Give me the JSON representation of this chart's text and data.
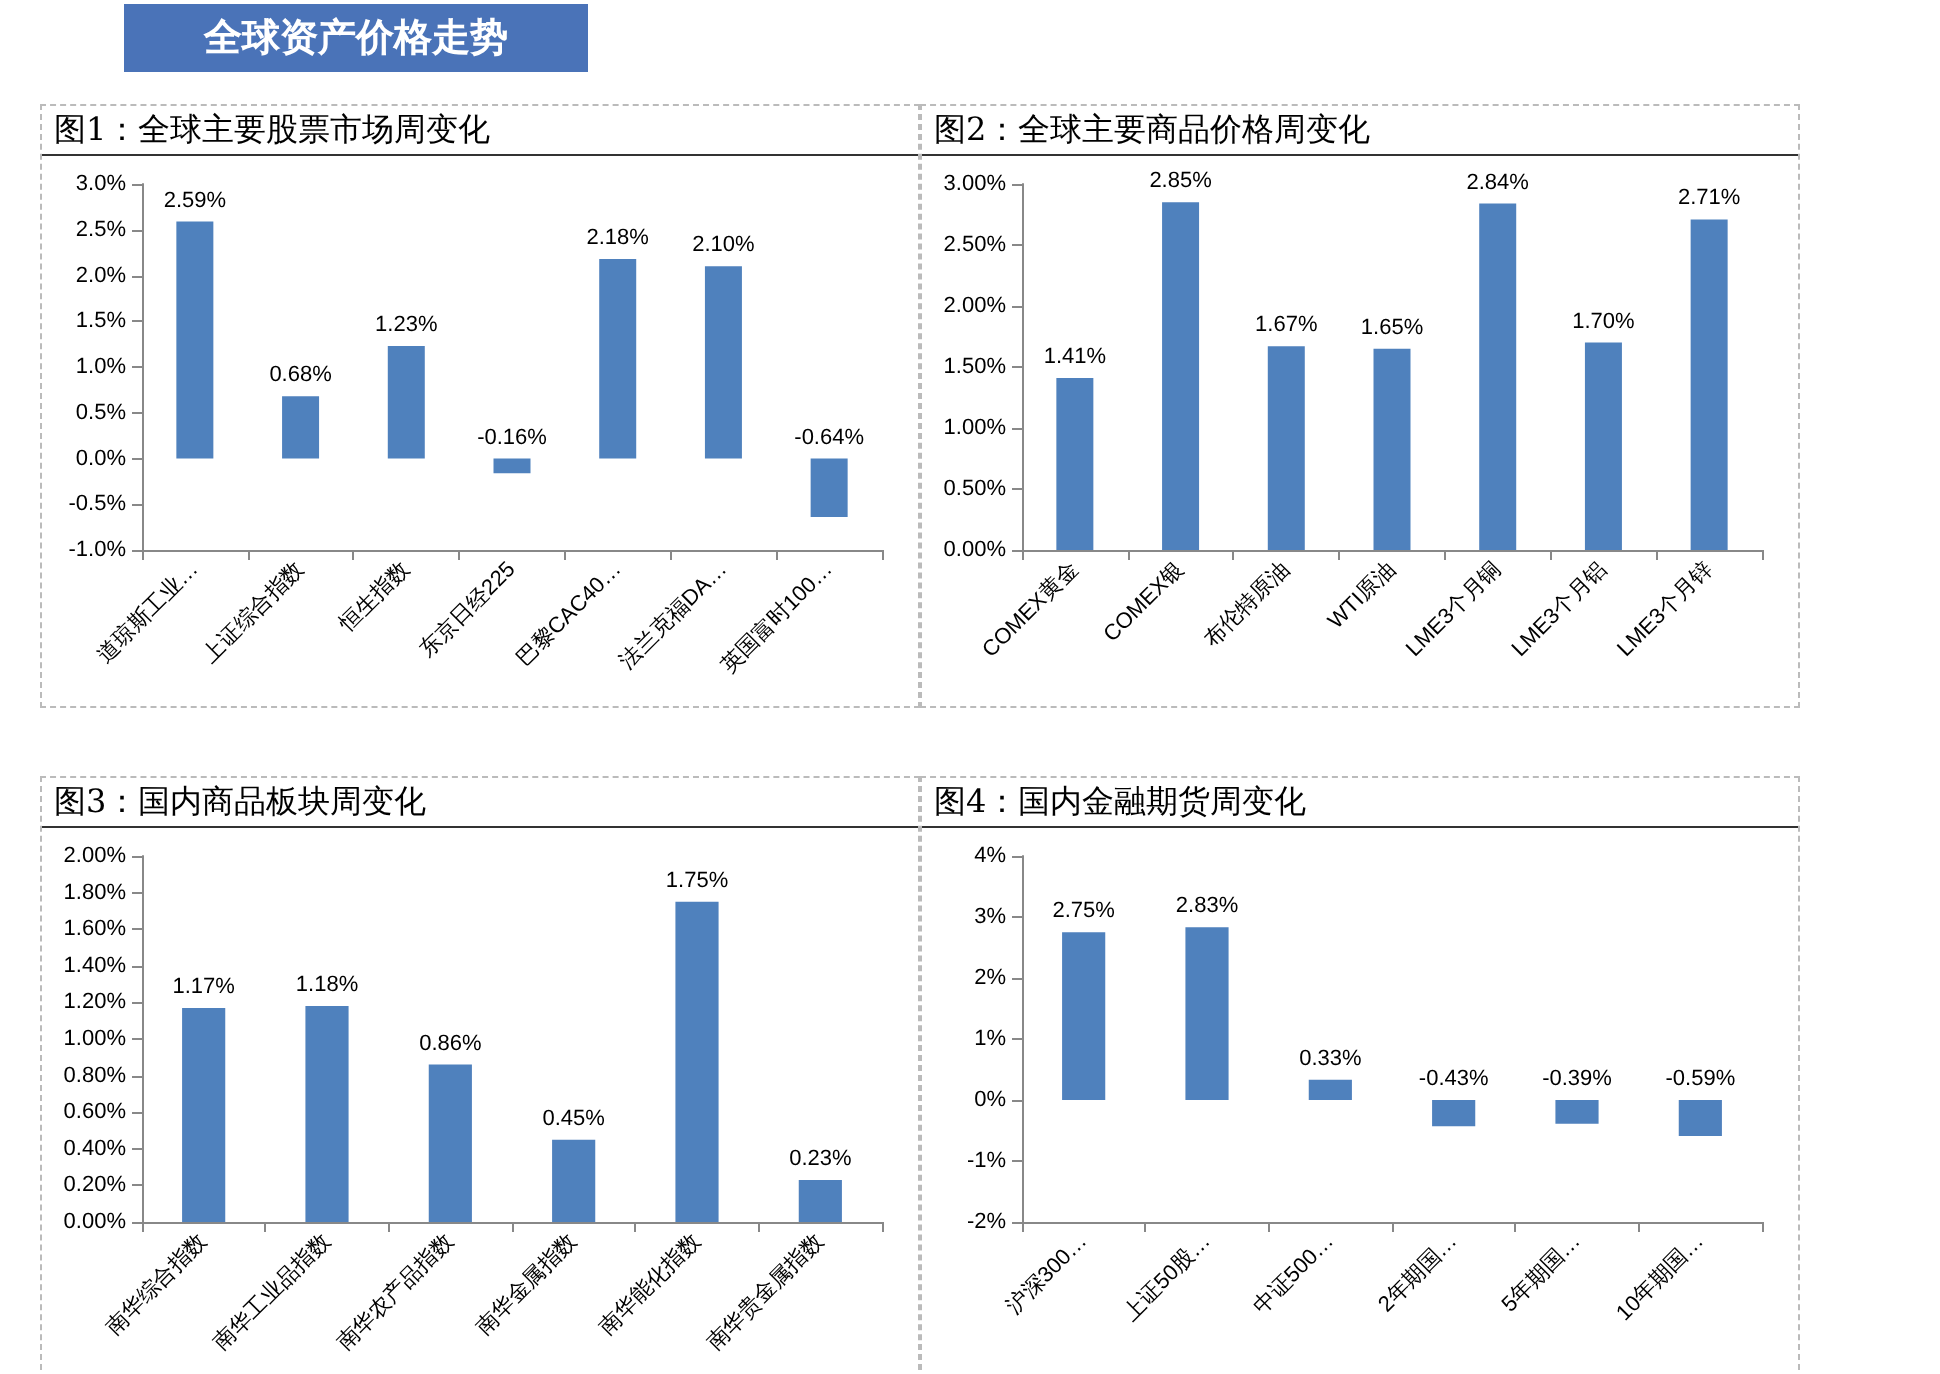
{
  "chart_data": [
    {
      "type": "bar",
      "title": "图1：全球主要股票市场周变化",
      "annotations": [
        "全球资产价格走势"
      ],
      "categories": [
        "道琼斯工业…",
        "上证综合指数",
        "恒生指数",
        "东京日经225",
        "巴黎CAC40…",
        "法兰克福DA…",
        "英国富时100…"
      ],
      "series": [
        {
          "color": "#4f81bd",
          "values": [
            2.59,
            0.68,
            1.23,
            -0.16,
            2.18,
            2.1,
            -0.64
          ],
          "value_labels": [
            "2.59%",
            "0.68%",
            "1.23%",
            "-0.16%",
            "2.18%",
            "2.10%",
            "-0.64%"
          ]
        }
      ],
      "ylim": [
        -1,
        3
      ],
      "yticks": [
        {
          "value": -1,
          "label": "-1.0%"
        },
        {
          "value": -0.5,
          "label": "-0.5%"
        },
        {
          "value": 0,
          "label": "0.0%"
        },
        {
          "value": 0.5,
          "label": "0.5%"
        },
        {
          "value": 1,
          "label": "1.0%"
        },
        {
          "value": 1.5,
          "label": "1.5%"
        },
        {
          "value": 2,
          "label": "2.0%"
        },
        {
          "value": 2.5,
          "label": "2.5%"
        },
        {
          "value": 3,
          "label": "3.0%"
        }
      ]
    },
    {
      "type": "bar",
      "title": "图2：全球主要商品价格周变化",
      "categories": [
        "COMEX黄金",
        "COMEX银",
        "布伦特原油",
        "WTI原油",
        "LME3个月铜",
        "LME3个月铝",
        "LME3个月锌"
      ],
      "series": [
        {
          "color": "#4f81bd",
          "values": [
            1.41,
            2.85,
            1.67,
            1.65,
            2.84,
            1.7,
            2.71
          ],
          "value_labels": [
            "1.41%",
            "2.85%",
            "1.67%",
            "1.65%",
            "2.84%",
            "1.70%",
            "2.71%"
          ]
        }
      ],
      "ylim": [
        0,
        3
      ],
      "yticks": [
        {
          "value": 0,
          "label": "0.00%"
        },
        {
          "value": 0.5,
          "label": "0.50%"
        },
        {
          "value": 1,
          "label": "1.00%"
        },
        {
          "value": 1.5,
          "label": "1.50%"
        },
        {
          "value": 2,
          "label": "2.00%"
        },
        {
          "value": 2.5,
          "label": "2.50%"
        },
        {
          "value": 3,
          "label": "3.00%"
        }
      ]
    },
    {
      "type": "bar",
      "title": "图3：国内商品板块周变化",
      "categories": [
        "南华综合指数",
        "南华工业品指数",
        "南华农产品指数",
        "南华金属指数",
        "南华能化指数",
        "南华贵金属指数"
      ],
      "series": [
        {
          "color": "#4f81bd",
          "values": [
            1.17,
            1.18,
            0.86,
            0.45,
            1.75,
            0.23
          ],
          "value_labels": [
            "1.17%",
            "1.18%",
            "0.86%",
            "0.45%",
            "1.75%",
            "0.23%"
          ]
        }
      ],
      "ylim": [
        0,
        2
      ],
      "yticks": [
        {
          "value": 0,
          "label": "0.00%"
        },
        {
          "value": 0.2,
          "label": "0.20%"
        },
        {
          "value": 0.4,
          "label": "0.40%"
        },
        {
          "value": 0.6,
          "label": "0.60%"
        },
        {
          "value": 0.8,
          "label": "0.80%"
        },
        {
          "value": 1,
          "label": "1.00%"
        },
        {
          "value": 1.2,
          "label": "1.20%"
        },
        {
          "value": 1.4,
          "label": "1.40%"
        },
        {
          "value": 1.6,
          "label": "1.60%"
        },
        {
          "value": 1.8,
          "label": "1.80%"
        },
        {
          "value": 2,
          "label": "2.00%"
        }
      ]
    },
    {
      "type": "bar",
      "title": "图4：国内金融期货周变化",
      "categories": [
        "沪深300…",
        "上证50股…",
        "中证500…",
        "2年期国…",
        "5年期国…",
        "10年期国…"
      ],
      "series": [
        {
          "color": "#4f81bd",
          "values": [
            2.75,
            2.83,
            0.33,
            -0.43,
            -0.39,
            -0.59
          ],
          "value_labels": [
            "2.75%",
            "2.83%",
            "0.33%",
            "-0.43%",
            "-0.39%",
            "-0.59%"
          ]
        }
      ],
      "ylim": [
        -2,
        4
      ],
      "yticks": [
        {
          "value": -2,
          "label": "-2%"
        },
        {
          "value": -1,
          "label": "-1%"
        },
        {
          "value": 0,
          "label": "0%"
        },
        {
          "value": 1,
          "label": "1%"
        },
        {
          "value": 2,
          "label": "2%"
        },
        {
          "value": 3,
          "label": "3%"
        },
        {
          "value": 4,
          "label": "4%"
        }
      ]
    }
  ]
}
